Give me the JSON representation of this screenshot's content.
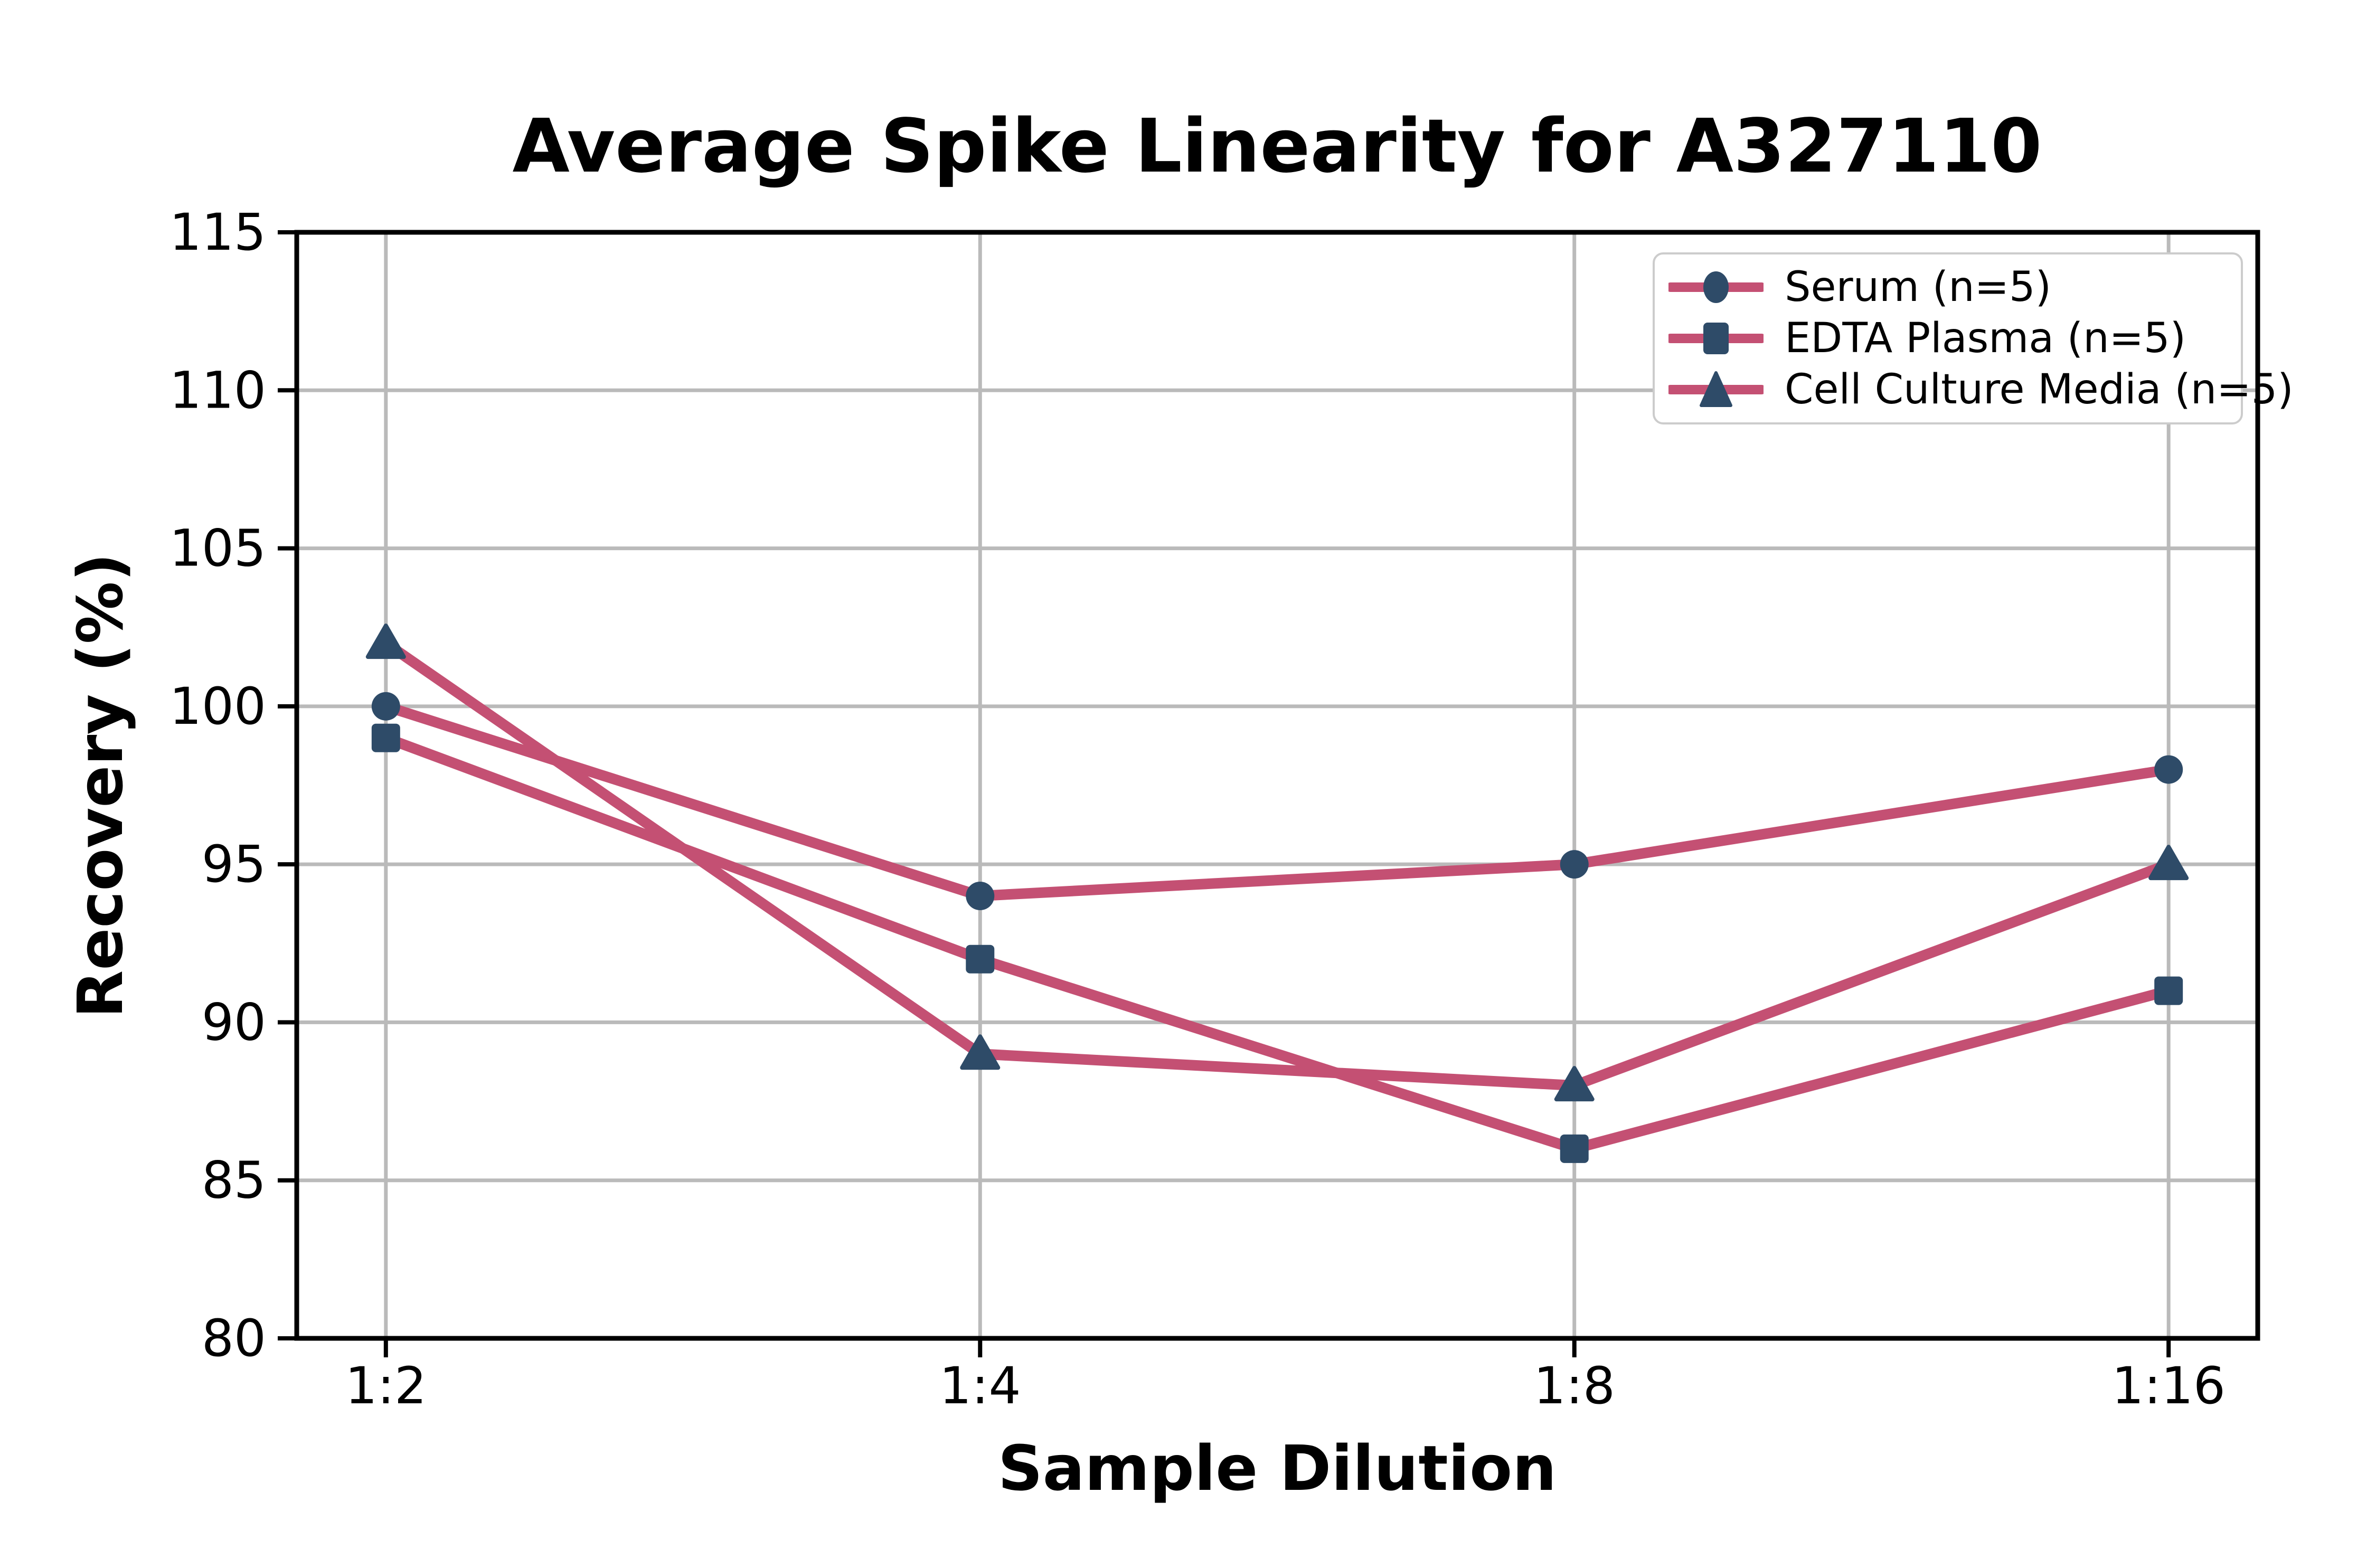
{
  "chart_data": {
    "type": "line",
    "title": "Average Spike Linearity for A327110",
    "xlabel": "Sample Dilution",
    "ylabel": "Recovery (%)",
    "categories": [
      "1:2",
      "1:4",
      "1:8",
      "1:16"
    ],
    "y_ticks": [
      80,
      85,
      90,
      95,
      100,
      105,
      110,
      115
    ],
    "ylim": [
      80,
      115
    ],
    "grid": true,
    "legend_position": "upper right",
    "series": [
      {
        "name": "Serum (n=5)",
        "marker": "circle",
        "values": [
          100,
          94,
          95,
          98
        ]
      },
      {
        "name": "EDTA Plasma (n=5)",
        "marker": "square",
        "values": [
          99,
          92,
          86,
          91
        ]
      },
      {
        "name": "Cell Culture Media (n=5)",
        "marker": "triangle",
        "values": [
          102,
          89,
          88,
          95
        ]
      }
    ],
    "colors": {
      "line": "#C45073",
      "marker": "#2E4B68",
      "grid": "#BABABA",
      "spine": "#000000",
      "legend_border": "#CCCCCC",
      "background": "#FFFFFF",
      "text": "#000000"
    }
  }
}
